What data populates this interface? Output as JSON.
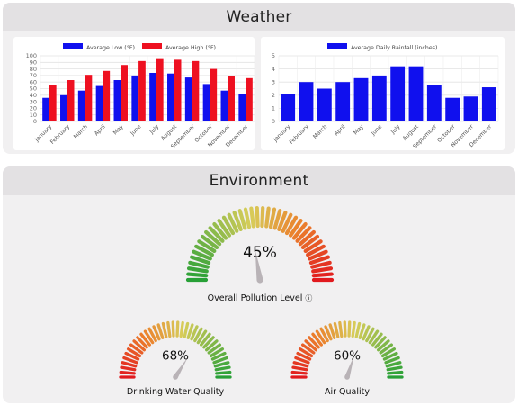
{
  "weather": {
    "title": "Weather"
  },
  "environment": {
    "title": "Environment",
    "overall": {
      "label": "Overall Pollution Level",
      "value": 45,
      "display": "45%",
      "info_icon": "ⓘ"
    },
    "water": {
      "label": "Drinking Water Quality",
      "value": 68,
      "display": "68%"
    },
    "air": {
      "label": "Air Quality",
      "value": 60,
      "display": "60%"
    }
  },
  "chart_data": [
    {
      "type": "bar",
      "categories": [
        "January",
        "February",
        "March",
        "April",
        "May",
        "June",
        "July",
        "August",
        "September",
        "October",
        "November",
        "December"
      ],
      "series": [
        {
          "name": "Average Low (°F)",
          "color": "#1010ee",
          "values": [
            36,
            40,
            47,
            54,
            63,
            70,
            74,
            73,
            67,
            57,
            47,
            42
          ]
        },
        {
          "name": "Average High (°F)",
          "color": "#ee1020",
          "values": [
            56,
            63,
            71,
            77,
            86,
            92,
            95,
            94,
            92,
            80,
            69,
            66
          ]
        }
      ],
      "ylim": [
        0,
        100
      ],
      "yticks": [
        0,
        10,
        20,
        30,
        40,
        50,
        60,
        70,
        80,
        90,
        100
      ],
      "legend": "top"
    },
    {
      "type": "bar",
      "categories": [
        "January",
        "February",
        "March",
        "April",
        "May",
        "June",
        "July",
        "August",
        "September",
        "October",
        "November",
        "December"
      ],
      "series": [
        {
          "name": "Average Daily Rainfall (inches)",
          "color": "#1010ee",
          "values": [
            2.1,
            3.0,
            2.5,
            3.0,
            3.3,
            3.5,
            4.2,
            4.2,
            2.8,
            1.8,
            1.9,
            2.6
          ]
        }
      ],
      "ylim": [
        0,
        5
      ],
      "yticks": [
        0,
        1,
        2,
        3,
        4,
        5
      ],
      "legend": "top"
    }
  ]
}
